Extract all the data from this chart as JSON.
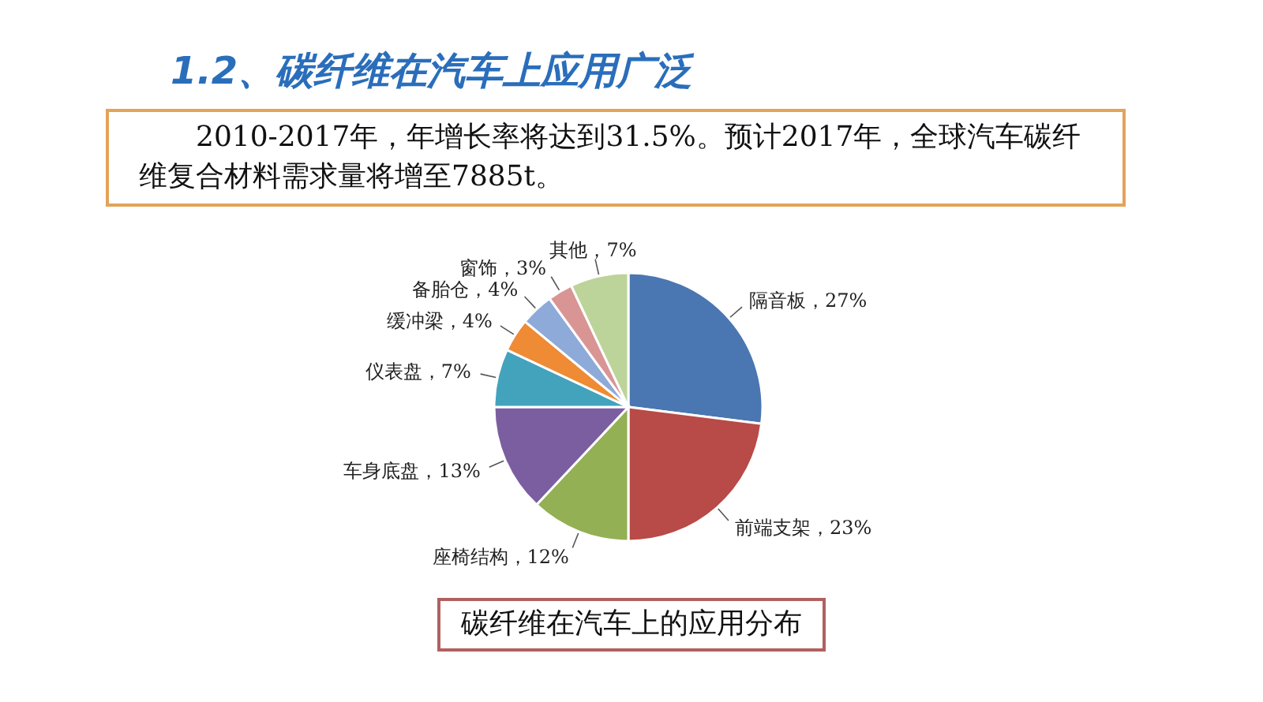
{
  "chart_data": {
    "type": "pie",
    "title": "1.2、碳纤维在汽车上应用广泛",
    "subtitle": "2010-2017年，年增长率将达到31.5%。预计2017年，全球汽车碳纤维复合材料需求量将增至7885t。",
    "annotations": [
      "碳纤维在汽车上的应用分布"
    ],
    "categories": [
      "隔音板",
      "前端支架",
      "座椅结构",
      "车身底盘",
      "仪表盘",
      "缓冲梁",
      "备胎仓",
      "窗饰",
      "其他"
    ],
    "values": [
      27,
      23,
      12,
      13,
      7,
      4,
      4,
      3,
      7
    ],
    "value_labels": [
      "27%",
      "23%",
      "12%",
      "13%",
      "7%",
      "4%",
      "4%",
      "3%",
      "7%"
    ],
    "colors": [
      "#4a76b2",
      "#b84a47",
      "#93b055",
      "#7b5ea0",
      "#43a3bd",
      "#ee8b34",
      "#8eaad9",
      "#d99594",
      "#bcd39a"
    ]
  }
}
